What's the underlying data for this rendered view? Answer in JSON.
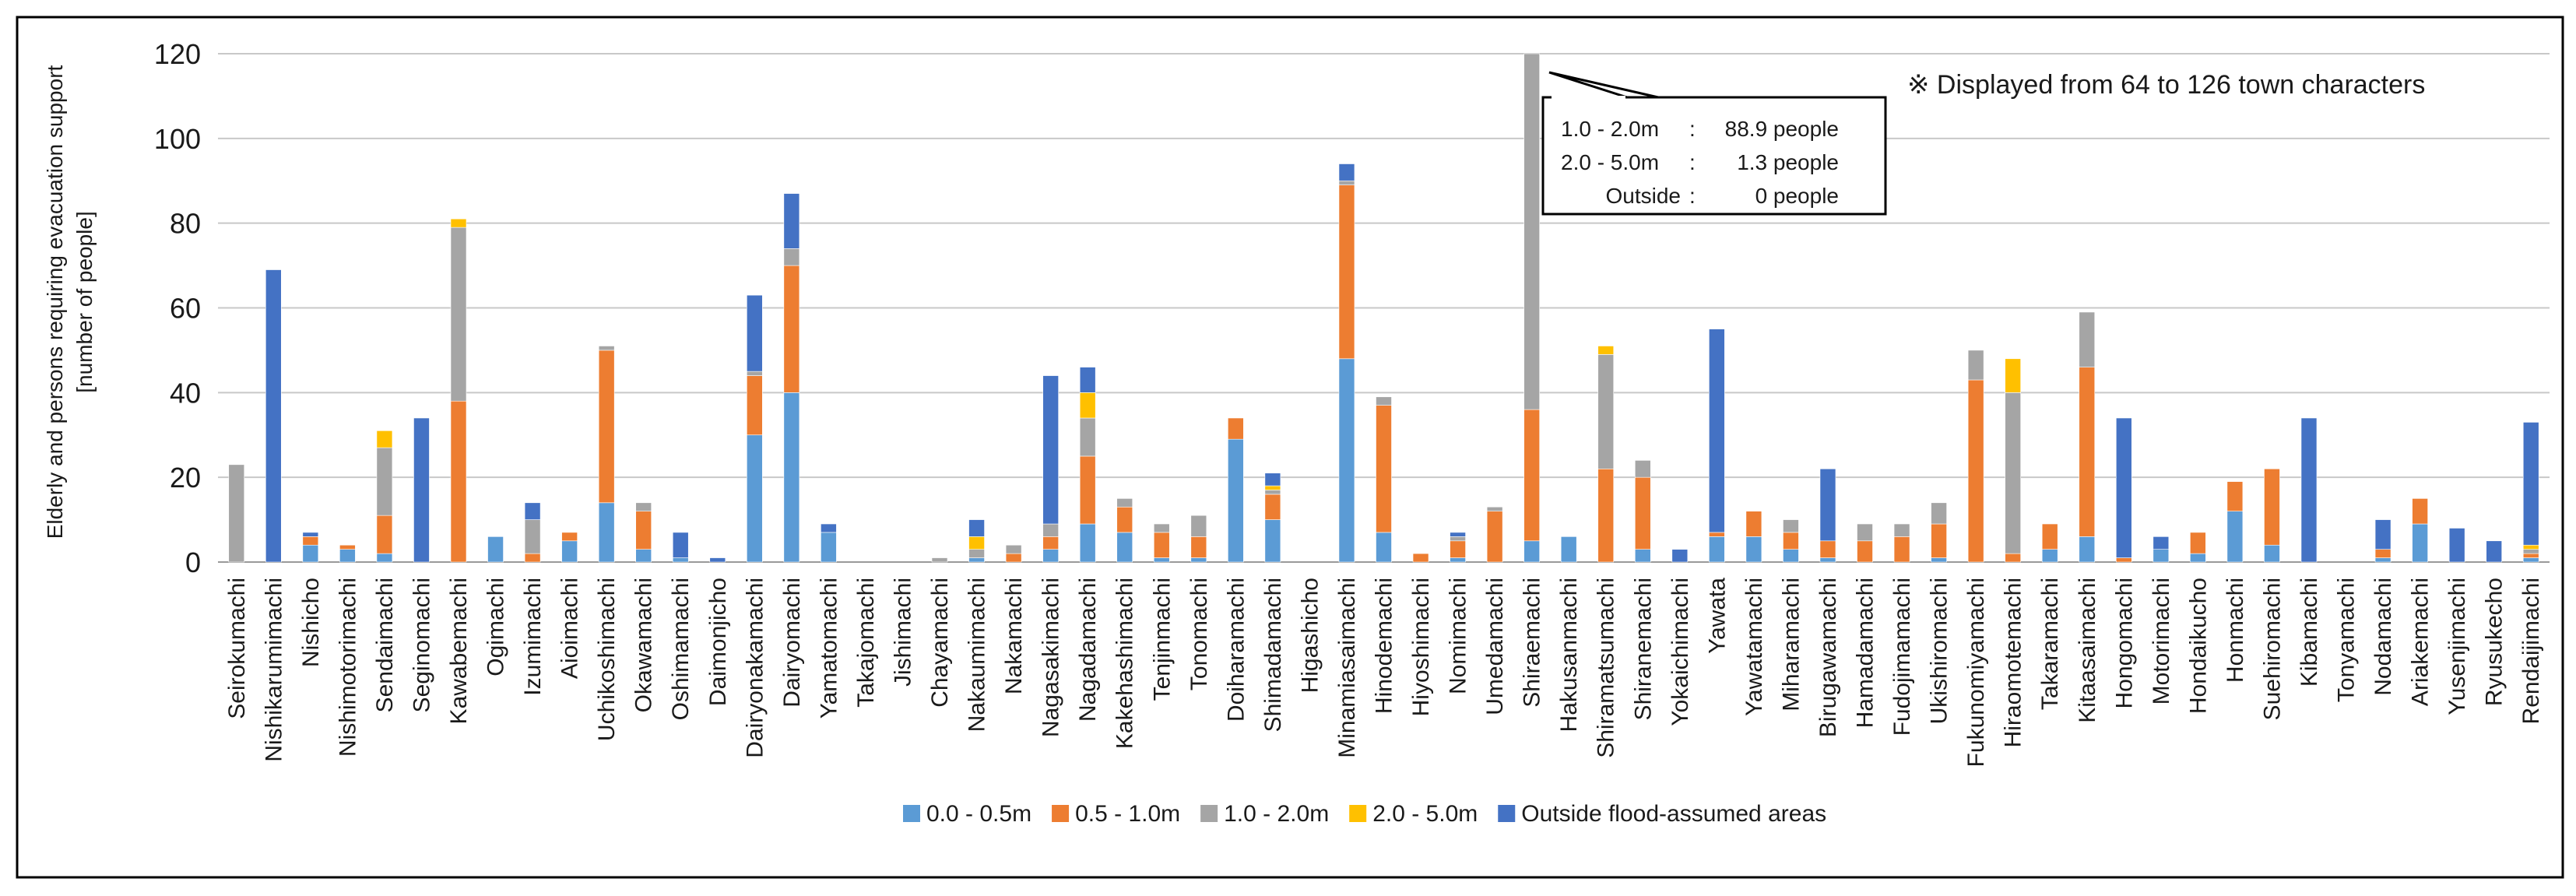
{
  "chart_data": {
    "type": "bar",
    "stacked": true,
    "title": "",
    "xlabel": "",
    "ylabel_lines": [
      "Elderly and persons requiring evacuation support",
      "[number of people]"
    ],
    "ylim": [
      0,
      120
    ],
    "yticks": [
      0,
      20,
      40,
      60,
      80,
      100,
      120
    ],
    "grid": true,
    "legend_position": "bottom",
    "categories": [
      "Seirokumachi",
      "Nishikarumimachi",
      "Nishicho",
      "Nishimotorimachi",
      "Sendaimachi",
      "Seginomachi",
      "Kawabemachi",
      "Ogimachi",
      "Izumimachi",
      "Aioimachi",
      "Uchikoshimachi",
      "Okawamachi",
      "Oshimamachi",
      "Daimonjicho",
      "Dairyonakamachi",
      "Dairyomachi",
      "Yamatomachi",
      "Takajomachi",
      "Jishimachi",
      "Chayamachi",
      "Nakaumimachi",
      "Nakamachi",
      "Nagasakimachi",
      "Nagadamachi",
      "Kakehashimachi",
      "Tenjinmachi",
      "Tonomachi",
      "Doiharamachi",
      "Shimadamachi",
      "Higashicho",
      "Minamiasaimachi",
      "Hinodemachi",
      "Hiyoshimachi",
      "Nomimachi",
      "Umedamachi",
      "Shiraemachi",
      "Hakusanmachi",
      "Shiramatsumachi",
      "Shiranemachi",
      "Yokaichimachi",
      "Yawata",
      "Yawatamachi",
      "Miharamachi",
      "Birugawamachi",
      "Hamadamachi",
      "Fudojimamachi",
      "Ukishiromachi",
      "Fukunomiyamachi",
      "Hiraomotemachi",
      "Takaramachi",
      "Kitaasaimachi",
      "Hongomachi",
      "Motorimachi",
      "Hondaikucho",
      "Honmachi",
      "Suehiromachi",
      "Kibamachi",
      "Tonyamachi",
      "Nodamachi",
      "Ariakemachi",
      "Yusenjimachi",
      "Ryusukecho",
      "Rendaijimachi"
    ],
    "series": [
      {
        "name": "0.0 - 0.5m",
        "color": "#5B9BD5",
        "values": [
          0,
          0,
          4,
          3,
          2,
          0,
          0,
          6,
          0,
          5,
          14,
          3,
          1,
          0,
          30,
          40,
          7,
          0,
          0,
          0,
          1,
          0,
          3,
          9,
          7,
          1,
          1,
          29,
          10,
          0,
          48,
          7,
          0,
          1,
          0,
          5,
          6,
          0,
          3,
          0,
          6,
          6,
          3,
          1,
          0,
          0,
          1,
          0,
          0,
          3,
          6,
          0,
          3,
          2,
          12,
          4,
          0,
          0,
          1,
          9,
          0,
          0,
          1
        ]
      },
      {
        "name": "0.5 - 1.0m",
        "color": "#ED7D31",
        "values": [
          0,
          0,
          2,
          1,
          9,
          0,
          38,
          0,
          2,
          2,
          36,
          9,
          0,
          0,
          14,
          30,
          0,
          0,
          0,
          0,
          0,
          2,
          3,
          16,
          6,
          6,
          5,
          5,
          6,
          0,
          41,
          30,
          2,
          4,
          12,
          31,
          0,
          22,
          17,
          0,
          1,
          6,
          4,
          4,
          5,
          6,
          8,
          43,
          2,
          6,
          40,
          1,
          0,
          5,
          7,
          18,
          0,
          0,
          2,
          6,
          0,
          0,
          1
        ]
      },
      {
        "name": "1.0 - 2.0m",
        "color": "#A5A5A5",
        "values": [
          23,
          0,
          0,
          0,
          16,
          0,
          41,
          0,
          8,
          0,
          1,
          2,
          0,
          0,
          1,
          4,
          0,
          0,
          0,
          1,
          2,
          2,
          3,
          9,
          2,
          2,
          5,
          0,
          1,
          0,
          1,
          2,
          0,
          1,
          1,
          88.9,
          0,
          27,
          4,
          0,
          0,
          0,
          3,
          0,
          4,
          3,
          5,
          7,
          38,
          0,
          13,
          0,
          0,
          0,
          0,
          0,
          0,
          0,
          0,
          0,
          0,
          0,
          1
        ]
      },
      {
        "name": "2.0 - 5.0m",
        "color": "#FFC000",
        "values": [
          0,
          0,
          0,
          0,
          4,
          0,
          2,
          0,
          0,
          0,
          0,
          0,
          0,
          0,
          0,
          0,
          0,
          0,
          0,
          0,
          3,
          0,
          0,
          6,
          0,
          0,
          0,
          0,
          1,
          0,
          0,
          0,
          0,
          0,
          0,
          1.3,
          0,
          2,
          0,
          0,
          0,
          0,
          0,
          0,
          0,
          0,
          0,
          0,
          8,
          0,
          0,
          0,
          0,
          0,
          0,
          0,
          0,
          0,
          0,
          0,
          0,
          0,
          1
        ]
      },
      {
        "name": "Outside flood-assumed areas",
        "color": "#4472C4",
        "values": [
          0,
          69,
          1,
          0,
          0,
          34,
          0,
          0,
          4,
          0,
          0,
          0,
          6,
          1,
          18,
          13,
          2,
          0,
          0,
          0,
          4,
          0,
          35,
          6,
          0,
          0,
          0,
          0,
          3,
          0,
          4,
          0,
          0,
          1,
          0,
          0,
          0,
          0,
          0,
          3,
          48,
          0,
          0,
          17,
          0,
          0,
          0,
          0,
          0,
          0,
          0,
          33,
          3,
          0,
          0,
          0,
          34,
          0,
          7,
          0,
          8,
          5,
          29
        ]
      }
    ],
    "annotations": {
      "note": "※ Displayed from 64 to 126 town characters",
      "callout_rows": [
        {
          "range": "1.0 - 2.0m",
          "sep": ":",
          "value": "88.9 people"
        },
        {
          "range": "2.0 - 5.0m",
          "sep": ":",
          "value": "1.3 people"
        },
        {
          "range": "Outside",
          "sep": ":",
          "value": "0 people"
        }
      ]
    }
  }
}
